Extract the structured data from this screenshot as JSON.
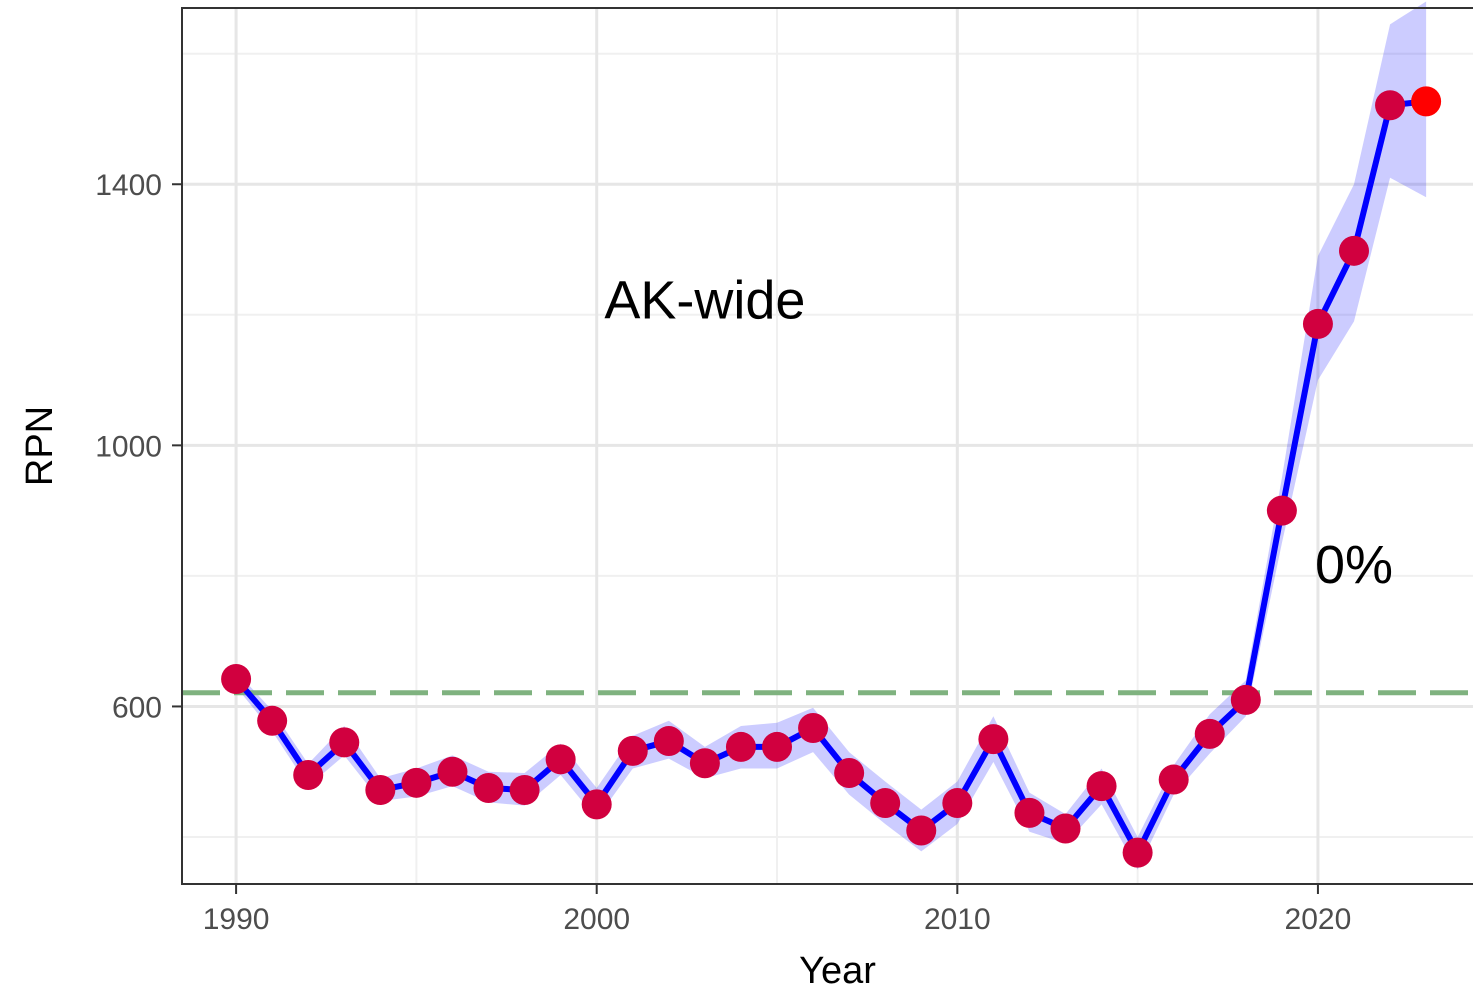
{
  "chart_data": {
    "type": "line",
    "xlabel": "Year",
    "ylabel": "RPN",
    "xlim": [
      1988.5,
      2024.3
    ],
    "ylim": [
      328,
      1670
    ],
    "x_ticks": [
      1990,
      2000,
      2010,
      2020
    ],
    "y_ticks": [
      600,
      1000,
      1400
    ],
    "y_minor_gridlines": [
      400,
      800,
      1200,
      1600
    ],
    "x_minor_gridlines": [
      1995,
      2005,
      2015
    ],
    "grid": true,
    "reference_line": {
      "y": 621,
      "style": "dashed",
      "color": "#7fb27f"
    },
    "annotations": [
      {
        "text": "AK-wide",
        "x": 2003,
        "y": 1222
      },
      {
        "text": "0%",
        "x": 2021,
        "y": 817
      }
    ],
    "series": [
      {
        "x": [
          1990,
          1991,
          1992,
          1993,
          1994,
          1995,
          1996,
          1997,
          1998,
          1999,
          2000,
          2001,
          2002,
          2003,
          2004,
          2005,
          2006,
          2007,
          2008,
          2009,
          2010,
          2011,
          2012,
          2013,
          2014,
          2015,
          2016,
          2017,
          2018,
          2019,
          2020,
          2021,
          2022,
          2023
        ],
        "y": [
          642,
          578,
          495,
          545,
          472,
          483,
          500,
          475,
          472,
          519,
          450,
          532,
          547,
          513,
          538,
          538,
          567,
          498,
          452,
          410,
          452,
          550,
          437,
          413,
          478,
          376,
          488,
          558,
          610,
          900,
          1186,
          1298,
          1521,
          1527
        ],
        "lower": [
          630,
          562,
          478,
          525,
          455,
          462,
          478,
          453,
          448,
          495,
          428,
          505,
          520,
          490,
          505,
          505,
          530,
          465,
          420,
          378,
          420,
          515,
          408,
          390,
          450,
          350,
          465,
          528,
          585,
          850,
          1100,
          1190,
          1410,
          1380
        ],
        "upper": [
          654,
          594,
          512,
          570,
          490,
          505,
          525,
          500,
          498,
          543,
          475,
          555,
          578,
          538,
          570,
          575,
          598,
          530,
          485,
          442,
          485,
          585,
          468,
          435,
          505,
          400,
          510,
          588,
          640,
          950,
          1290,
          1400,
          1645,
          1680
        ],
        "line_color": "#0000ff",
        "point_color": "#d1003f",
        "band_color": "#0000ff"
      }
    ],
    "colors": {
      "panel_border": "#333333",
      "grid_major": "#e6e6e6",
      "grid_minor": "#f0f0f0",
      "last_point": "#ff0000"
    }
  }
}
